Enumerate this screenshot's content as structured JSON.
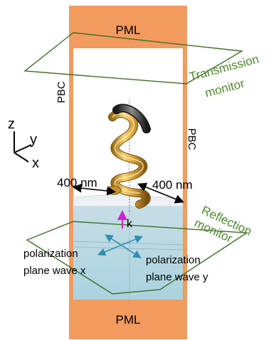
{
  "labels": {
    "pml_top": "PML",
    "pml_bottom": "PML",
    "pbc_left": "PBC",
    "pbc_right": "PBC",
    "transmission_monitor_line1": "Transmission",
    "transmission_monitor_line2": "monitor",
    "reflection_monitor_line1": "Reflection",
    "reflection_monitor_line2": "monitor",
    "width_left": "400 nm",
    "width_right": "400 nm",
    "wave_vector": "k",
    "polarization_x_line1": "polarization",
    "polarization_x_line2": "plane wave x",
    "polarization_y_line1": "polarization",
    "polarization_y_line2": "plane wave y",
    "axis_z": "z",
    "axis_y": "y",
    "axis_x": "x"
  },
  "colors": {
    "pml": "#f39a5e",
    "monitor": "#3f6f23",
    "monitor_text": "#4c8a2a",
    "substrate_front": "#b8d9e3",
    "substrate_top": "#e6ebef",
    "helix_gold": "#d6a23a",
    "helix_dark": "#3a3a3a",
    "k_arrow": "#d21fd2",
    "polarization_arrow": "#2f8fb0",
    "text": "#000000"
  }
}
